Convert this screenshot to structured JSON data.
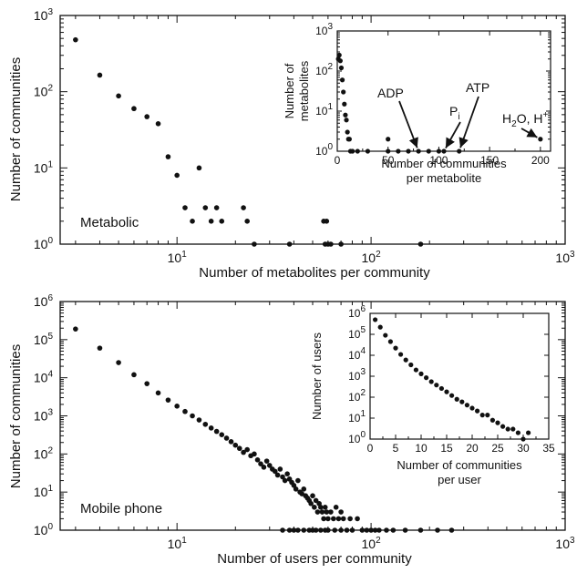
{
  "chart_data": [
    {
      "type": "scatter",
      "panel_label": "Metabolic",
      "xlabel": "Number of metabolites per community",
      "ylabel": "Number of communities",
      "xscale": "log",
      "yscale": "log",
      "xlim": [
        2.5,
        1000
      ],
      "ylim": [
        1,
        1000
      ],
      "xticks": [
        {
          "base": "10",
          "exp": "1",
          "value": 10
        },
        {
          "base": "10",
          "exp": "2",
          "value": 100
        },
        {
          "base": "10",
          "exp": "3",
          "value": 1000
        }
      ],
      "yticks": [
        {
          "base": "10",
          "exp": "0",
          "value": 1
        },
        {
          "base": "10",
          "exp": "1",
          "value": 10
        },
        {
          "base": "10",
          "exp": "2",
          "value": 100
        },
        {
          "base": "10",
          "exp": "3",
          "value": 1000
        }
      ],
      "points": [
        [
          3,
          480
        ],
        [
          4,
          165
        ],
        [
          5,
          88
        ],
        [
          6,
          60
        ],
        [
          7,
          47
        ],
        [
          8,
          38
        ],
        [
          9,
          14
        ],
        [
          10,
          8
        ],
        [
          11,
          3
        ],
        [
          12,
          2
        ],
        [
          13,
          10
        ],
        [
          14,
          3
        ],
        [
          15,
          2
        ],
        [
          16,
          3
        ],
        [
          17,
          2
        ],
        [
          22,
          3
        ],
        [
          23,
          2
        ],
        [
          25,
          1
        ],
        [
          38,
          1
        ],
        [
          57,
          2
        ],
        [
          58,
          1
        ],
        [
          59,
          2
        ],
        [
          60,
          1
        ],
        [
          62,
          1
        ],
        [
          70,
          1
        ],
        [
          180,
          1
        ]
      ],
      "inset": {
        "type": "scatter",
        "xlabel": [
          "Number of communities",
          "per metabolite"
        ],
        "ylabel": [
          "Number of",
          "metabolites"
        ],
        "xscale": "linear",
        "yscale": "log",
        "xlim": [
          0,
          210
        ],
        "ylim": [
          1,
          1000
        ],
        "xticks": [
          0,
          50,
          100,
          150,
          200
        ],
        "yticks": [
          {
            "base": "10",
            "exp": "0",
            "value": 1
          },
          {
            "base": "10",
            "exp": "1",
            "value": 10
          },
          {
            "base": "10",
            "exp": "2",
            "value": 100
          },
          {
            "base": "10",
            "exp": "3",
            "value": 1000
          }
        ],
        "points": [
          [
            1,
            200
          ],
          [
            2,
            250
          ],
          [
            3,
            180
          ],
          [
            4,
            120
          ],
          [
            5,
            60
          ],
          [
            6,
            30
          ],
          [
            7,
            15
          ],
          [
            8,
            8
          ],
          [
            9,
            6
          ],
          [
            10,
            3
          ],
          [
            11,
            2
          ],
          [
            12,
            2
          ],
          [
            13,
            1
          ],
          [
            15,
            1
          ],
          [
            20,
            1
          ],
          [
            30,
            1
          ],
          [
            50,
            2
          ],
          [
            50,
            1
          ],
          [
            60,
            1
          ],
          [
            70,
            1
          ],
          [
            80,
            1
          ],
          [
            90,
            1
          ],
          [
            100,
            1
          ],
          [
            105,
            1
          ],
          [
            120,
            1
          ],
          [
            200,
            2
          ]
        ],
        "annotations": [
          {
            "label": "ADP",
            "target": [
              80,
              1
            ]
          },
          {
            "label": "P",
            "sub": "i",
            "target": [
              105,
              1
            ]
          },
          {
            "label": "ATP",
            "target": [
              120,
              1
            ]
          },
          {
            "label": "H",
            "sub": "2",
            "rest": "O, H",
            "sup": "+",
            "target": [
              200,
              2
            ]
          }
        ]
      }
    },
    {
      "type": "scatter",
      "panel_label": "Mobile phone",
      "xlabel": "Number of users per community",
      "ylabel": "Number of communities",
      "xscale": "log",
      "yscale": "log",
      "xlim": [
        2.5,
        1000
      ],
      "ylim": [
        1,
        1000000
      ],
      "xticks": [
        {
          "base": "10",
          "exp": "1",
          "value": 10
        },
        {
          "base": "10",
          "exp": "2",
          "value": 100
        },
        {
          "base": "10",
          "exp": "3",
          "value": 1000
        }
      ],
      "yticks": [
        {
          "base": "10",
          "exp": "0",
          "value": 1
        },
        {
          "base": "10",
          "exp": "1",
          "value": 10
        },
        {
          "base": "10",
          "exp": "2",
          "value": 100
        },
        {
          "base": "10",
          "exp": "3",
          "value": 1000
        },
        {
          "base": "10",
          "exp": "4",
          "value": 10000
        },
        {
          "base": "10",
          "exp": "5",
          "value": 100000
        },
        {
          "base": "10",
          "exp": "6",
          "value": 1000000
        }
      ],
      "points": [
        [
          3,
          190000
        ],
        [
          4,
          60000
        ],
        [
          5,
          25000
        ],
        [
          6,
          12000
        ],
        [
          7,
          7000
        ],
        [
          8,
          4000
        ],
        [
          9,
          2600
        ],
        [
          10,
          1800
        ],
        [
          11,
          1300
        ],
        [
          12,
          1000
        ],
        [
          13,
          780
        ],
        [
          14,
          600
        ],
        [
          15,
          480
        ],
        [
          16,
          390
        ],
        [
          17,
          320
        ],
        [
          18,
          260
        ],
        [
          19,
          210
        ],
        [
          20,
          170
        ],
        [
          21,
          140
        ],
        [
          22,
          110
        ],
        [
          23,
          130
        ],
        [
          24,
          90
        ],
        [
          25,
          100
        ],
        [
          26,
          70
        ],
        [
          27,
          55
        ],
        [
          28,
          45
        ],
        [
          29,
          65
        ],
        [
          30,
          50
        ],
        [
          31,
          40
        ],
        [
          32,
          35
        ],
        [
          33,
          28
        ],
        [
          34,
          40
        ],
        [
          35,
          25
        ],
        [
          36,
          20
        ],
        [
          37,
          30
        ],
        [
          38,
          22
        ],
        [
          39,
          18
        ],
        [
          40,
          15
        ],
        [
          41,
          12
        ],
        [
          42,
          20
        ],
        [
          43,
          10
        ],
        [
          44,
          9
        ],
        [
          45,
          12
        ],
        [
          46,
          8
        ],
        [
          47,
          7
        ],
        [
          48,
          6
        ],
        [
          49,
          5
        ],
        [
          50,
          8
        ],
        [
          51,
          4
        ],
        [
          52,
          6
        ],
        [
          53,
          3
        ],
        [
          54,
          5
        ],
        [
          55,
          4
        ],
        [
          56,
          3
        ],
        [
          57,
          2
        ],
        [
          58,
          4
        ],
        [
          59,
          3
        ],
        [
          60,
          2
        ],
        [
          62,
          3
        ],
        [
          64,
          2
        ],
        [
          66,
          4
        ],
        [
          68,
          2
        ],
        [
          70,
          3
        ],
        [
          72,
          2
        ],
        [
          75,
          1
        ],
        [
          78,
          2
        ],
        [
          80,
          1
        ],
        [
          85,
          2
        ],
        [
          90,
          1
        ],
        [
          95,
          1
        ],
        [
          100,
          1
        ],
        [
          105,
          1
        ],
        [
          110,
          1
        ],
        [
          120,
          1
        ],
        [
          130,
          1
        ],
        [
          150,
          1
        ],
        [
          180,
          1
        ],
        [
          220,
          1
        ],
        [
          260,
          1
        ],
        [
          50,
          1
        ],
        [
          55,
          1
        ],
        [
          60,
          1
        ],
        [
          65,
          1
        ],
        [
          70,
          1
        ],
        [
          45,
          1
        ],
        [
          40,
          1
        ],
        [
          35,
          1
        ],
        [
          38,
          1
        ],
        [
          42,
          1
        ],
        [
          48,
          1
        ],
        [
          52,
          1
        ],
        [
          58,
          1
        ]
      ],
      "inset": {
        "type": "scatter",
        "xlabel": [
          "Number of communities",
          "per user"
        ],
        "ylabel": [
          "Number of users"
        ],
        "xscale": "linear",
        "yscale": "log",
        "xlim": [
          0,
          35
        ],
        "ylim": [
          1,
          1000000
        ],
        "xticks": [
          0,
          5,
          10,
          15,
          20,
          25,
          30,
          35
        ],
        "yticks": [
          {
            "base": "10",
            "exp": "0",
            "value": 1
          },
          {
            "base": "10",
            "exp": "1",
            "value": 10
          },
          {
            "base": "10",
            "exp": "2",
            "value": 100
          },
          {
            "base": "10",
            "exp": "3",
            "value": 1000
          },
          {
            "base": "10",
            "exp": "4",
            "value": 10000
          },
          {
            "base": "10",
            "exp": "5",
            "value": 100000
          },
          {
            "base": "10",
            "exp": "6",
            "value": 1000000
          }
        ],
        "points": [
          [
            1,
            500000
          ],
          [
            2,
            220000
          ],
          [
            3,
            90000
          ],
          [
            4,
            45000
          ],
          [
            5,
            22000
          ],
          [
            6,
            11000
          ],
          [
            7,
            6000
          ],
          [
            8,
            3500
          ],
          [
            9,
            2000
          ],
          [
            10,
            1300
          ],
          [
            11,
            850
          ],
          [
            12,
            550
          ],
          [
            13,
            380
          ],
          [
            14,
            260
          ],
          [
            15,
            180
          ],
          [
            16,
            120
          ],
          [
            17,
            80
          ],
          [
            18,
            60
          ],
          [
            19,
            42
          ],
          [
            20,
            30
          ],
          [
            21,
            22
          ],
          [
            22,
            14
          ],
          [
            23,
            14
          ],
          [
            24,
            8
          ],
          [
            25,
            6
          ],
          [
            26,
            4
          ],
          [
            27,
            3
          ],
          [
            28,
            3
          ],
          [
            29,
            2
          ],
          [
            30,
            1
          ],
          [
            31,
            2
          ]
        ]
      }
    }
  ]
}
